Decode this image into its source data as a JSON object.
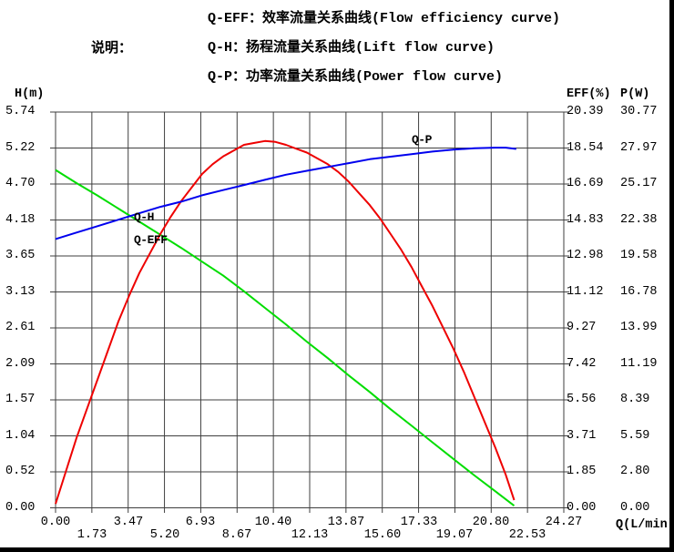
{
  "header": {
    "note_label": "说明：",
    "legend": [
      {
        "id": "q-eff",
        "text": "Q-EFF：效率流量关系曲线(Flow efficiency curve)"
      },
      {
        "id": "q-h",
        "text": "Q-H：扬程流量关系曲线(Lift flow curve)"
      },
      {
        "id": "q-p",
        "text": "Q-P：功率流量关系曲线(Power flow curve)"
      }
    ]
  },
  "colors": {
    "grid": "#3f3f3f",
    "curve_qh": "#00dd00",
    "curve_qeff": "#ee0000",
    "curve_qp": "#0000ee",
    "text": "#000000",
    "frame": "#000000"
  },
  "chart_data": {
    "type": "line",
    "grid": true,
    "axes": {
      "x": {
        "label": "Q(L/min)",
        "min": 0,
        "max": 24.27,
        "ticks": [
          "0.00",
          "1.73",
          "3.47",
          "5.20",
          "6.93",
          "8.67",
          "10.40",
          "12.13",
          "13.87",
          "15.60",
          "17.33",
          "19.07",
          "20.80",
          "22.53",
          "24.27"
        ]
      },
      "y_left": {
        "label": "H(m)",
        "min": 0,
        "max": 5.74,
        "ticks": [
          "5.74",
          "5.22",
          "4.70",
          "4.18",
          "3.65",
          "3.13",
          "2.61",
          "2.09",
          "1.57",
          "1.04",
          "0.52",
          "0.00"
        ]
      },
      "y_right_eff": {
        "label": "EFF(%)",
        "min": 0,
        "max": 20.39,
        "ticks": [
          "20.39",
          "18.54",
          "16.69",
          "14.83",
          "12.98",
          "11.12",
          "9.27",
          "7.42",
          "5.56",
          "3.71",
          "1.85",
          "0.00"
        ]
      },
      "y_right_p": {
        "label": "P(W)",
        "min": 0,
        "max": 30.77,
        "ticks": [
          "30.77",
          "27.97",
          "25.17",
          "22.38",
          "19.58",
          "16.78",
          "13.99",
          "11.19",
          "8.39",
          "5.59",
          "2.80",
          "0.00"
        ]
      }
    },
    "series": [
      {
        "id": "qh",
        "name": "Q-H",
        "axis": "y_left",
        "color_key": "curve_qh",
        "points": [
          [
            0,
            4.9
          ],
          [
            1,
            4.71
          ],
          [
            2,
            4.53
          ],
          [
            3,
            4.34
          ],
          [
            4,
            4.15
          ],
          [
            5,
            3.96
          ],
          [
            6,
            3.77
          ],
          [
            7,
            3.57
          ],
          [
            8,
            3.37
          ],
          [
            9,
            3.14
          ],
          [
            10,
            2.9
          ],
          [
            11,
            2.66
          ],
          [
            12,
            2.41
          ],
          [
            13,
            2.17
          ],
          [
            14,
            1.92
          ],
          [
            15,
            1.68
          ],
          [
            16,
            1.43
          ],
          [
            17,
            1.19
          ],
          [
            18,
            0.95
          ],
          [
            19,
            0.71
          ],
          [
            20,
            0.47
          ],
          [
            21,
            0.24
          ],
          [
            21.9,
            0.03
          ]
        ]
      },
      {
        "id": "qeff",
        "name": "Q-EFF",
        "axis": "y_right_eff",
        "color_key": "curve_qeff",
        "points": [
          [
            0,
            0.2
          ],
          [
            0.5,
            1.9
          ],
          [
            1,
            3.6
          ],
          [
            1.5,
            5.1
          ],
          [
            2,
            6.6
          ],
          [
            2.5,
            8.1
          ],
          [
            3,
            9.6
          ],
          [
            3.5,
            10.9
          ],
          [
            4,
            12.1
          ],
          [
            4.5,
            13.1
          ],
          [
            5,
            14.1
          ],
          [
            5.5,
            15.0
          ],
          [
            6,
            15.8
          ],
          [
            6.5,
            16.5
          ],
          [
            7,
            17.2
          ],
          [
            7.5,
            17.7
          ],
          [
            8,
            18.1
          ],
          [
            8.5,
            18.4
          ],
          [
            9,
            18.7
          ],
          [
            9.5,
            18.8
          ],
          [
            10,
            18.9
          ],
          [
            10.5,
            18.85
          ],
          [
            11,
            18.7
          ],
          [
            11.5,
            18.5
          ],
          [
            12,
            18.3
          ],
          [
            12.5,
            18.0
          ],
          [
            13,
            17.7
          ],
          [
            13.5,
            17.3
          ],
          [
            14,
            16.8
          ],
          [
            14.5,
            16.2
          ],
          [
            15,
            15.6
          ],
          [
            15.5,
            14.9
          ],
          [
            16,
            14.1
          ],
          [
            16.5,
            13.3
          ],
          [
            17,
            12.4
          ],
          [
            17.5,
            11.4
          ],
          [
            18,
            10.4
          ],
          [
            18.5,
            9.3
          ],
          [
            19,
            8.2
          ],
          [
            19.5,
            7.0
          ],
          [
            20,
            5.7
          ],
          [
            20.5,
            4.4
          ],
          [
            21,
            3.1
          ],
          [
            21.5,
            1.7
          ],
          [
            21.9,
            0.4
          ]
        ]
      },
      {
        "id": "qp",
        "name": "Q-P",
        "axis": "y_right_p",
        "color_key": "curve_qp",
        "points": [
          [
            0,
            20.9
          ],
          [
            1,
            21.4
          ],
          [
            2,
            21.9
          ],
          [
            3,
            22.4
          ],
          [
            4,
            22.9
          ],
          [
            5,
            23.4
          ],
          [
            6,
            23.8
          ],
          [
            7,
            24.3
          ],
          [
            8,
            24.7
          ],
          [
            9,
            25.1
          ],
          [
            10,
            25.5
          ],
          [
            11,
            25.9
          ],
          [
            12,
            26.2
          ],
          [
            13,
            26.5
          ],
          [
            14,
            26.8
          ],
          [
            15,
            27.1
          ],
          [
            16,
            27.3
          ],
          [
            17,
            27.5
          ],
          [
            18,
            27.7
          ],
          [
            19,
            27.85
          ],
          [
            20,
            27.95
          ],
          [
            21,
            28.0
          ],
          [
            21.5,
            28.0
          ],
          [
            22,
            27.9
          ]
        ]
      }
    ],
    "curve_labels": [
      {
        "series": "qh",
        "text": "Q-H"
      },
      {
        "series": "qeff",
        "text": "Q-EFF"
      },
      {
        "series": "qp",
        "text": "Q-P"
      }
    ]
  }
}
